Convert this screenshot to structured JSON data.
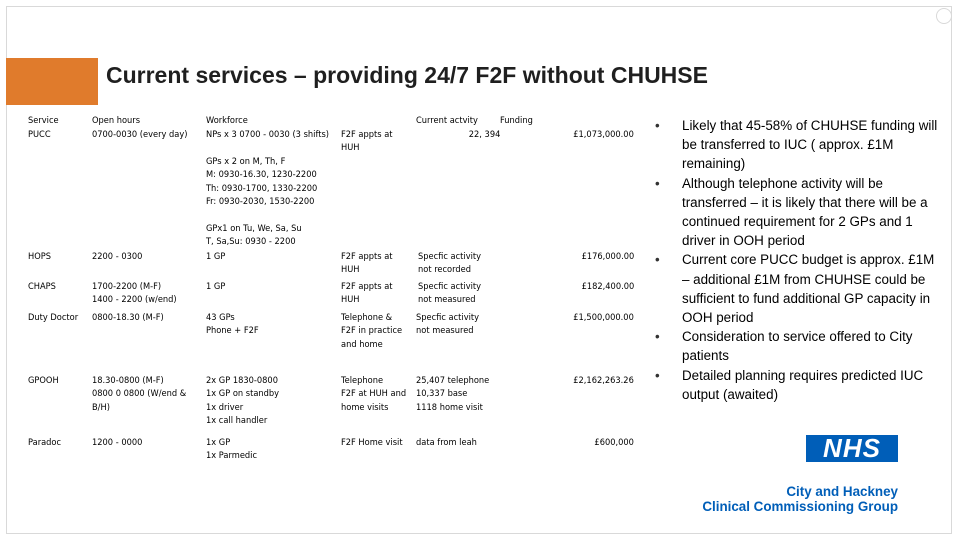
{
  "slide": {
    "title": "Current services – providing 24/7 F2F without CHUHSE"
  },
  "table": {
    "headers": {
      "service": "Service",
      "open_hours": "Open hours",
      "workforce": "Workforce",
      "current_activity": "Current actvity",
      "funding": "Funding"
    },
    "rows": [
      {
        "service": "PUCC",
        "open_hours": "0700-0030 (every day)",
        "workforce": "NPs x 3  0700 - 0030 (3 shifts)\n\nGPs x 2 on M, Th, F\nM: 0930-16.30, 1230-2200\nTh: 0930-1700, 1330-2200\nFr: 0930-2030, 1530-2200\n\nGPx1 on Tu, We, Sa, Su\nT, Sa,Su: 0930 - 2200",
        "type": "F2F appts at\nHUH",
        "activity": "22, 394",
        "funding": "£1,073,000.00"
      },
      {
        "service": "HOPS",
        "open_hours": "2200 - 0300",
        "workforce": "1 GP",
        "type": "F2F appts at\nHUH",
        "activity": "Specfic activity\nnot recorded",
        "funding": "£176,000.00"
      },
      {
        "service": "CHAPS",
        "open_hours": "1700-2200 (M-F)\n1400 - 2200 (w/end)",
        "workforce": "1 GP",
        "type": "F2F appts at\nHUH",
        "activity": "Specfic activity\nnot measured",
        "funding": "£182,400.00"
      },
      {
        "service": "Duty Doctor",
        "open_hours": "0800-18.30 (M-F)",
        "workforce": "43 GPs\nPhone + F2F",
        "type": "Telephone &\nF2F in practice\nand home",
        "activity": "Specfic activity\nnot measured",
        "funding": "£1,500,000.00"
      },
      {
        "service": "GPOOH",
        "open_hours": "18.30-0800 (M-F)\n0800 0 0800 (W/end &\nB/H)",
        "workforce": "2x GP 1830-0800\n1x GP on standby\n1x driver\n1x call handler",
        "type": "Telephone\nF2F at HUH and\nhome visits",
        "activity": "25,407 telephone\n10,337 base\n1118 home visit",
        "funding": "£2,162,263.26"
      },
      {
        "service": "Paradoc",
        "open_hours": "1200 - 0000",
        "workforce": "1x GP\n1x Parmedic",
        "type": "F2F Home visit",
        "activity": "data from leah",
        "funding": "£600,000"
      }
    ]
  },
  "bullets": [
    "Likely that 45-58% of CHUHSE funding will be transferred to IUC ( approx. £1M remaining)",
    "Although telephone activity will be transferred – it is likely that there will be a continued requirement for 2 GPs and 1 driver in OOH period",
    "Current core PUCC budget is approx. £1M – additional £1M from CHUHSE could be sufficient to fund additional GP capacity in OOH period",
    "Consideration to service offered to City patients",
    "Detailed planning requires predicted IUC output (awaited)"
  ],
  "branding": {
    "nhs_logo": "NHS",
    "org_line1": "City and Hackney",
    "org_line2": "Clinical Commissioning Group",
    "accent_color": "#e07b2c",
    "nhs_blue": "#005eb8"
  }
}
